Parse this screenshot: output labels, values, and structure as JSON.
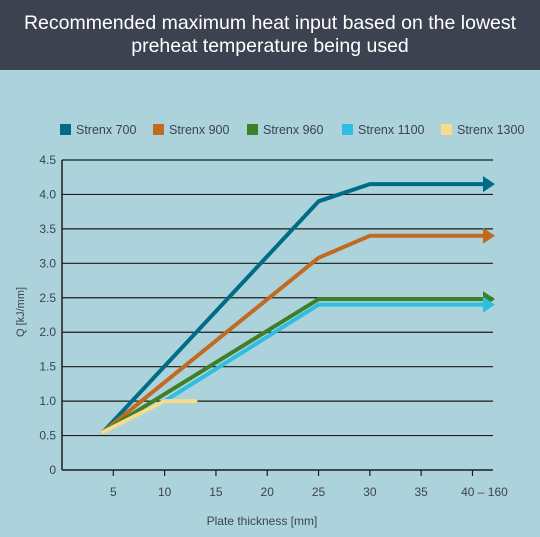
{
  "header": {
    "title": "Recommended maximum heat input based on the lowest preheat temperature being used"
  },
  "colors": {
    "background": "#acd3dc",
    "header_bg": "#3c4250",
    "axis": "#1d1d1b",
    "text": "#3c4250"
  },
  "chart_data": {
    "type": "line",
    "title": "Recommended maximum heat input based on the lowest preheat temperature being used",
    "xlabel": "Plate thickness [mm]",
    "ylabel": "Q [kJ/mm]",
    "x_ticks": [
      "5",
      "10",
      "15",
      "20",
      "25",
      "30",
      "35",
      "40 – 160"
    ],
    "x_tick_values": [
      5,
      10,
      15,
      20,
      25,
      30,
      35,
      40
    ],
    "y_ticks": [
      "0",
      "0.5",
      "1.0",
      "1.5",
      "2.0",
      "2.5",
      "3.0",
      "3.5",
      "4.0",
      "4.5"
    ],
    "y_tick_values": [
      0,
      0.5,
      1.0,
      1.5,
      2.0,
      2.5,
      3.0,
      3.5,
      4.0,
      4.5
    ],
    "xlim": [
      0,
      42
    ],
    "ylim": [
      0,
      4.5
    ],
    "grid": "horizontal",
    "legend_position": "top",
    "series": [
      {
        "name": "Strenx 700",
        "color": "#006c87",
        "arrow": true,
        "x": [
          4,
          25,
          30,
          42
        ],
        "y": [
          0.55,
          3.9,
          4.15,
          4.15
        ]
      },
      {
        "name": "Strenx 900",
        "color": "#c16a20",
        "arrow": true,
        "x": [
          4,
          25,
          30,
          42
        ],
        "y": [
          0.55,
          3.08,
          3.4,
          3.4
        ]
      },
      {
        "name": "Strenx 960",
        "color": "#3d8028",
        "arrow": true,
        "x": [
          4,
          25,
          42
        ],
        "y": [
          0.55,
          2.48,
          2.48
        ]
      },
      {
        "name": "Strenx 1100",
        "color": "#2fbde0",
        "arrow": true,
        "x": [
          4,
          10,
          25,
          42
        ],
        "y": [
          0.55,
          1.0,
          2.4,
          2.4
        ]
      },
      {
        "name": "Strenx 1300",
        "color": "#f7dc8c",
        "arrow": false,
        "x": [
          4,
          10,
          13
        ],
        "y": [
          0.55,
          1.0,
          1.0
        ]
      }
    ]
  }
}
